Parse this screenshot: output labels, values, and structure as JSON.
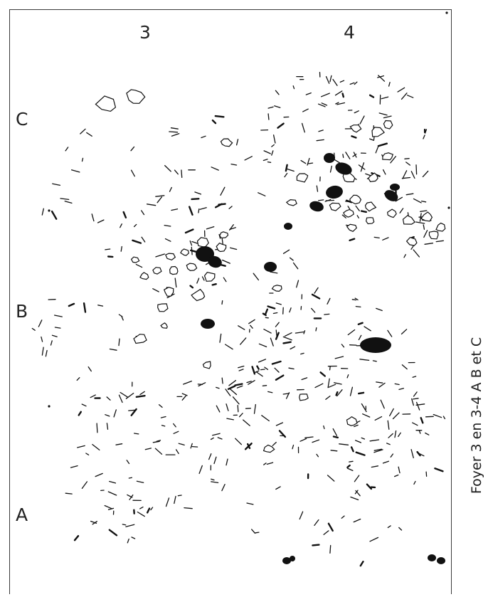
{
  "grid": {
    "columns": [
      "3",
      "4"
    ],
    "rows": [
      "C",
      "B",
      "A"
    ]
  },
  "caption": "Foyer 3 en 3-4 A B et C",
  "colors": {
    "ink": "#111111",
    "stone_fill": "#ffffff",
    "frame": "#3a3a3a"
  }
}
